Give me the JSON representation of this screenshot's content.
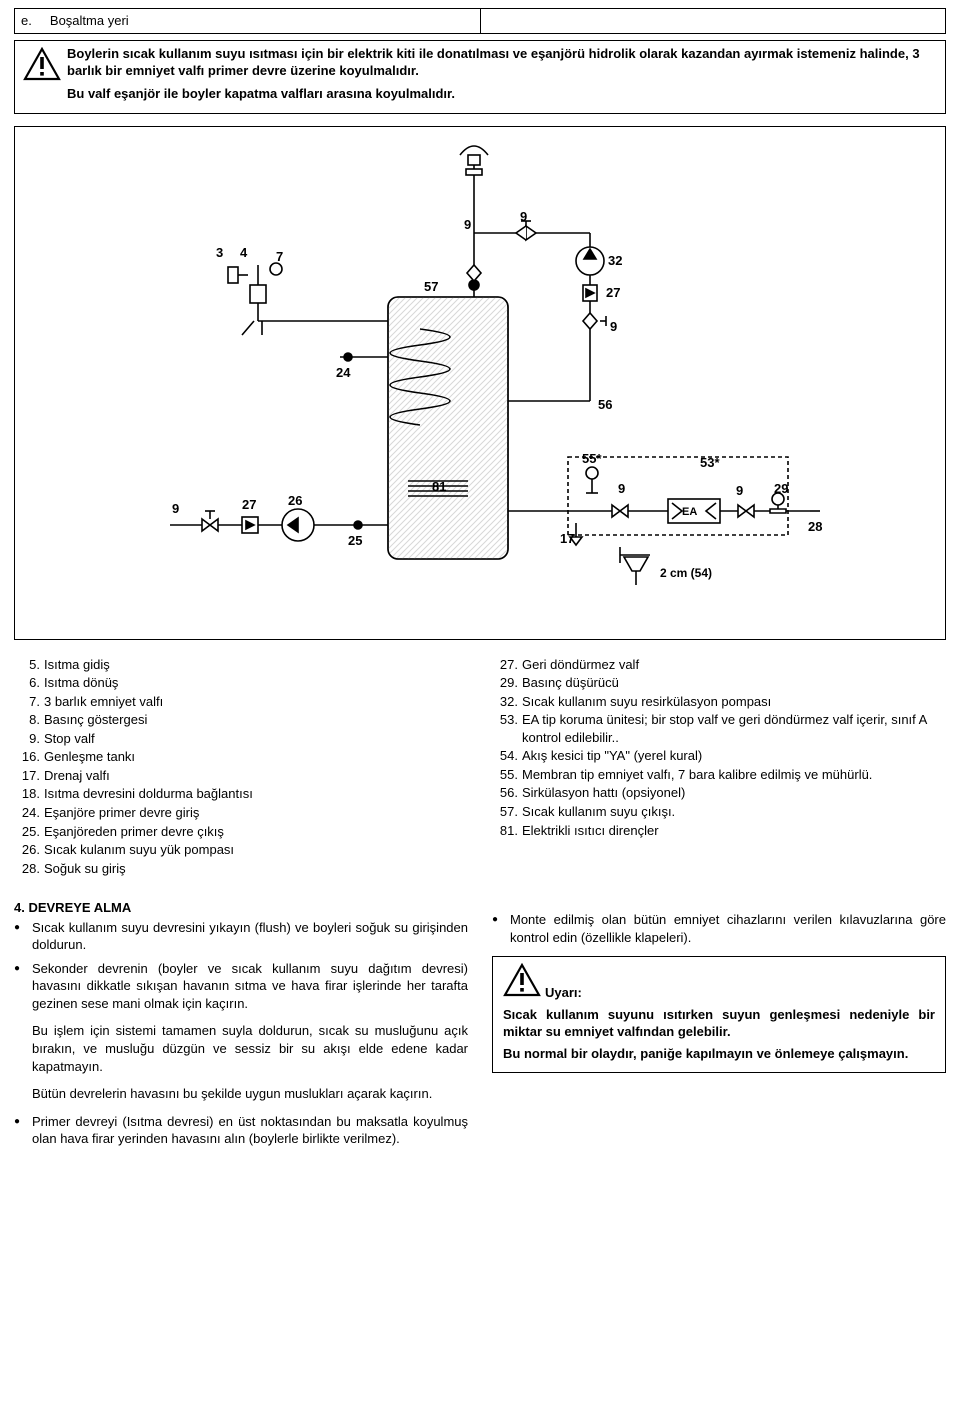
{
  "topTable": {
    "cellA": "e.",
    "cellB": "Boşaltma yeri"
  },
  "note": {
    "line1": "Boylerin sıcak kullanım suyu ısıtması için bir elektrik kiti ile donatılması ve eşanjörü hidrolik olarak kazandan ayırmak istemeniz halinde, 3 barlık bir emniyet valfı primer devre üzerine koyulmalıdır.",
    "line2": "Bu valf eşanjör ile boyler kapatma valfları arasına koyulmalıdır."
  },
  "legendLeft": [
    {
      "n": "5.",
      "t": "Isıtma gidiş"
    },
    {
      "n": "6.",
      "t": "Isıtma dönüş"
    },
    {
      "n": "7.",
      "t": "3 barlık emniyet valfı"
    },
    {
      "n": "8.",
      "t": "Basınç göstergesi"
    },
    {
      "n": "9.",
      "t": "Stop valf"
    },
    {
      "n": "16.",
      "t": "Genleşme tankı"
    },
    {
      "n": "17.",
      "t": "Drenaj valfı"
    },
    {
      "n": "18.",
      "t": "Isıtma devresini doldurma bağlantısı"
    },
    {
      "n": "24.",
      "t": "Eşanjöre primer devre giriş"
    },
    {
      "n": "25.",
      "t": "Eşanjöreden primer devre çıkış"
    },
    {
      "n": "26.",
      "t": "Sıcak kulanım suyu yük pompası"
    },
    {
      "n": "28.",
      "t": "Soğuk su giriş"
    }
  ],
  "legendRight": [
    {
      "n": "27.",
      "t": "Geri döndürmez valf"
    },
    {
      "n": "29.",
      "t": "Basınç düşürücü"
    },
    {
      "n": "32.",
      "t": "Sıcak kullanım suyu resirkülasyon pompası"
    },
    {
      "n": "53.",
      "t": "EA tip koruma ünitesi; bir stop valf ve geri döndürmez valf içerir, sınıf A kontrol edilebilir.."
    },
    {
      "n": "54.",
      "t": "Akış kesici tip \"YA\" (yerel kural)"
    },
    {
      "n": "55.",
      "t": "Membran tip emniyet valfı, 7 bara kalibre edilmiş ve mühürlü."
    },
    {
      "n": "56.",
      "t": "Sirkülasyon hattı (opsiyonel)"
    },
    {
      "n": "57.",
      "t": "Sıcak kullanım suyu çıkışı."
    },
    {
      "n": "81.",
      "t": "Elektrikli ısıtıcı dirençler"
    }
  ],
  "section4": {
    "title": "4. DEVREYE ALMA",
    "bulletsLeft1": [
      "Sıcak kullanım suyu devresini yıkayın (flush) ve boyleri soğuk su girişinden doldurun.",
      "Sekonder devrenin (boyler ve sıcak kullanım suyu dağıtım devresi) havasını dikkatle sıkışan havanın sıtma ve hava firar işlerinde her tarafta gezinen sese mani olmak için kaçırın."
    ],
    "paraLeft1": "Bu işlem için sistemi tamamen suyla doldurun, sıcak su musluğunu açık bırakın, ve musluğu düzgün ve sessiz bir su akışı elde edene kadar kapatmayın.",
    "paraLeft2": "Bütün devrelerin havasını bu şekilde uygun muslukları açarak kaçırın.",
    "bulletsLeft2": [
      "Primer devreyi (Isıtma devresi) en üst noktasından bu maksatla koyulmuş olan hava firar yerinden havasını alın (boylerle birlikte verilmez)."
    ],
    "bulletsRight": [
      "Monte edilmiş olan bütün emniyet cihazlarını verilen kılavuzlarına göre kontrol edin (özellikle klapeleri)."
    ],
    "warnLabel": "Uyarı:",
    "warnText1": "Sıcak kullanım suyunu ısıtırken suyun genleşmesi nedeniyle bir miktar su emniyet valfından gelebilir.",
    "warnText2": "Bu normal bir olaydır, paniğe kapılmayın ve önlemeye çalışmayın."
  },
  "diagram": {
    "labels": {
      "n3": "3",
      "n4": "4",
      "n7": "7",
      "n9": "9",
      "n17": "17",
      "n24": "24",
      "n25": "25",
      "n26": "26",
      "n27": "27",
      "n28": "28",
      "n29": "29",
      "n32": "32",
      "n53": "53*",
      "n55": "55*",
      "n56": "56",
      "n57": "57",
      "n81": "81",
      "ea": "EA",
      "two": "2 cm (54)"
    },
    "colors": {
      "stroke": "#000000",
      "fill": "#ffffff",
      "shade": "#e3e3e3",
      "hatch": "#bdbdbd"
    }
  }
}
